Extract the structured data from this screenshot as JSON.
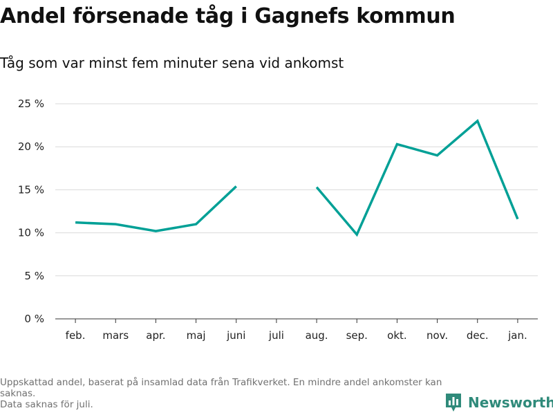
{
  "header": {
    "title": "Andel försenade tåg i Gagnefs kommun",
    "subtitle": "Tåg som var minst fem minuter sena vid ankomst"
  },
  "footer": {
    "note_1": "Uppskattad andel, baserat på insamlad data från Trafikverket. En mindre andel ankomster kan saknas.",
    "note_2": "Data saknas för juli."
  },
  "brand": {
    "name": "Newsworthy",
    "icon": "newsworthy-logo-icon",
    "color": "#2f8a7a"
  },
  "chart_data": {
    "type": "line",
    "title": "Andel försenade tåg i Gagnefs kommun",
    "subtitle": "Tåg som var minst fem minuter sena vid ankomst",
    "categories": [
      "feb.",
      "mars",
      "apr.",
      "maj",
      "juni",
      "juli",
      "aug.",
      "sep.",
      "okt.",
      "nov.",
      "dec.",
      "jan."
    ],
    "series": [
      {
        "values": [
          11.2,
          11.0,
          10.2,
          11.0,
          15.4,
          null,
          15.3,
          9.8,
          20.3,
          19.0,
          23.0,
          11.6
        ],
        "color": "#00a096"
      }
    ],
    "y_ticks": [
      "0 %",
      "5 %",
      "10 %",
      "15 %",
      "20 %",
      "25 %"
    ],
    "ylim": [
      0,
      25
    ],
    "grid": true,
    "legend": "none"
  }
}
